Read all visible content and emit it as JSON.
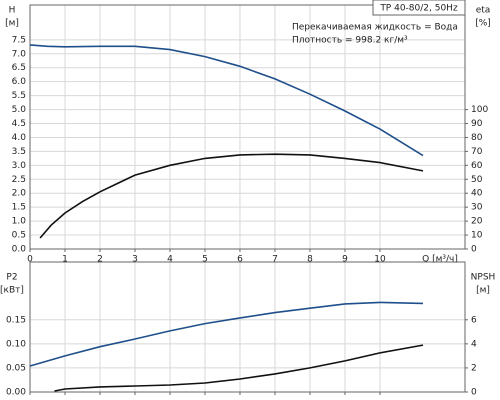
{
  "chart_data": [
    {
      "type": "line",
      "title": "TP 40-80/2, 50Hz",
      "annotations": [
        "Перекачиваемая жидкость = Вода",
        "Плотность = 998.2 кг/м³"
      ],
      "ylabel": [
        "H",
        "[м]"
      ],
      "y2label": [
        "eta",
        "[%]"
      ],
      "xlabel": "Q [м³/ч]",
      "xlim": [
        0,
        12.43
      ],
      "xticks": [
        0,
        1,
        2,
        3,
        4,
        5,
        6,
        7,
        8,
        9,
        10
      ],
      "show_xtick_labels": true,
      "ylim": [
        0,
        8.75
      ],
      "yticks": [
        {
          "value": 0,
          "label": "0.0"
        },
        {
          "value": 0.5,
          "label": "0.5"
        },
        {
          "value": 1,
          "label": "1.0"
        },
        {
          "value": 1.5,
          "label": "1.5"
        },
        {
          "value": 2,
          "label": "2.0"
        },
        {
          "value": 2.5,
          "label": "2.5"
        },
        {
          "value": 3,
          "label": "3.0"
        },
        {
          "value": 3.5,
          "label": "3.5"
        },
        {
          "value": 4,
          "label": "4.0"
        },
        {
          "value": 4.5,
          "label": "4.5"
        },
        {
          "value": 5,
          "label": "5.0"
        },
        {
          "value": 5.5,
          "label": "5.5"
        },
        {
          "value": 6,
          "label": "6.0"
        },
        {
          "value": 6.5,
          "label": "6.5"
        },
        {
          "value": 7,
          "label": "7.0"
        },
        {
          "value": 7.5,
          "label": "7.5"
        }
      ],
      "y2lim": [
        0,
        175
      ],
      "y2ticks": [
        0,
        10,
        20,
        30,
        40,
        50,
        60,
        70,
        80,
        90,
        100
      ],
      "grid": true,
      "series": [
        {
          "name": "H",
          "color": "#1f4f8a",
          "x": [
            0,
            0.5,
            1,
            2,
            3,
            4,
            5,
            6,
            7,
            8,
            9,
            10,
            11.23
          ],
          "values": [
            7.32,
            7.27,
            7.25,
            7.27,
            7.27,
            7.15,
            6.9,
            6.55,
            6.1,
            5.55,
            4.95,
            4.3,
            3.35
          ]
        },
        {
          "name": "eta",
          "color": "#111111",
          "axis": "y2",
          "x": [
            0.29,
            0.6,
            1,
            1.5,
            2,
            3,
            4,
            5,
            6,
            7,
            8,
            9,
            10,
            11.23
          ],
          "values": [
            7.9,
            17,
            25.8,
            34,
            41,
            53,
            60,
            65,
            67.5,
            68,
            67.5,
            65,
            62,
            56
          ]
        }
      ]
    },
    {
      "type": "line",
      "ylabel": [
        "P2",
        "[кВт]"
      ],
      "y2label": [
        "NPSH",
        "[м]"
      ],
      "xlim": [
        0,
        12.43
      ],
      "xticks": [
        0,
        1,
        2,
        3,
        4,
        5,
        6,
        7,
        8,
        9,
        10
      ],
      "show_xtick_labels": false,
      "ylim": [
        0,
        0.27
      ],
      "yticks": [
        {
          "value": 0,
          "label": "0.00"
        },
        {
          "value": 0.05,
          "label": "0.05"
        },
        {
          "value": 0.1,
          "label": "0.10"
        },
        {
          "value": 0.15,
          "label": "0.15"
        }
      ],
      "y2lim": [
        0,
        10.8
      ],
      "y2ticks": [
        0,
        2,
        4,
        6
      ],
      "grid": true,
      "series": [
        {
          "name": "P2",
          "color": "#1f4f8a",
          "x": [
            0,
            1,
            2,
            3,
            4,
            5,
            6,
            7,
            8,
            9,
            10,
            11.23
          ],
          "values": [
            0.054,
            0.075,
            0.094,
            0.11,
            0.127,
            0.142,
            0.154,
            0.165,
            0.174,
            0.183,
            0.186,
            0.184
          ]
        },
        {
          "name": "NPSH",
          "color": "#111111",
          "axis": "y2",
          "x": [
            0.7,
            1,
            2,
            3,
            4,
            5,
            6,
            7,
            8,
            9,
            10,
            11.23
          ],
          "values": [
            0.08,
            0.25,
            0.42,
            0.5,
            0.58,
            0.75,
            1.08,
            1.5,
            2.0,
            2.58,
            3.25,
            3.9
          ]
        }
      ]
    }
  ]
}
